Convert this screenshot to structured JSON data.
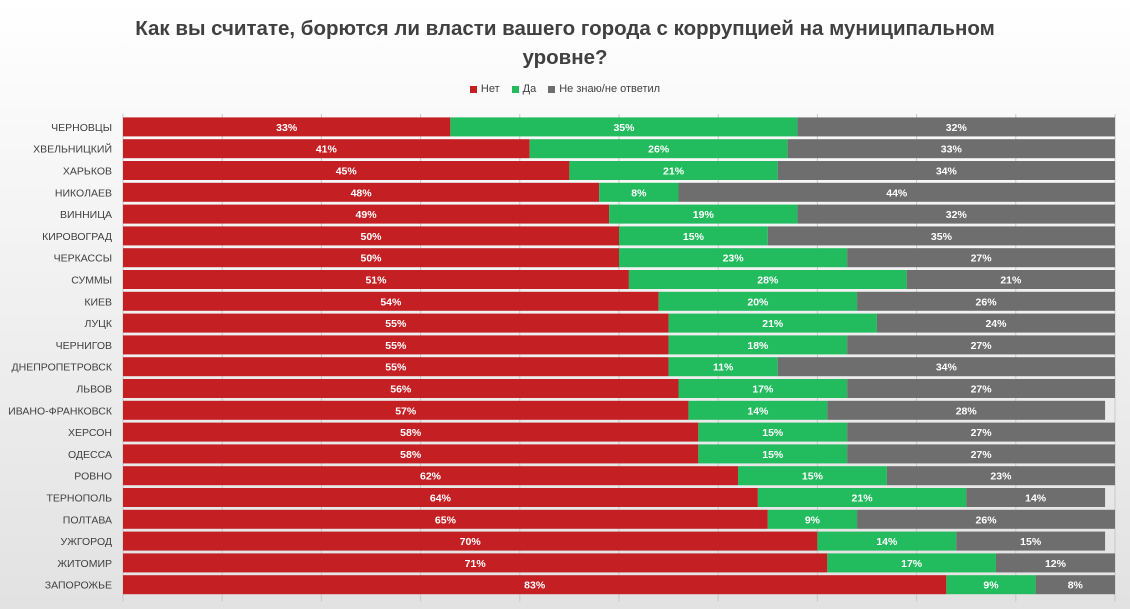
{
  "chart_data": {
    "type": "bar",
    "orientation": "horizontal",
    "stacked": true,
    "title": "Как вы считате, борются ли власти вашего города с коррупцией на муниципальном уровне?",
    "xlabel": "",
    "ylabel": "",
    "xlim": [
      0,
      100
    ],
    "legend_position": "top",
    "categories": [
      "ЧЕРНОВЦЫ",
      "ХВЕЛЬНИЦКИЙ",
      "ХАРЬКОВ",
      "НИКОЛАЕВ",
      "ВИННИЦА",
      "КИРОВОГРАД",
      "ЧЕРКАССЫ",
      "СУММЫ",
      "КИЕВ",
      "ЛУЦК",
      "ЧЕРНИГОВ",
      "ДНЕПРОПЕТРОВСК",
      "ЛЬВОВ",
      "ИВАНО-ФРАНКОВСК",
      "ХЕРСОН",
      "ОДЕССА",
      "РОВНО",
      "ТЕРНОПОЛЬ",
      "ПОЛТАВА",
      "УЖГОРОД",
      "ЖИТОМИР",
      "ЗАПОРОЖЬЕ"
    ],
    "series": [
      {
        "name": "Нет",
        "color": "#c42024",
        "values": [
          33,
          41,
          45,
          48,
          49,
          50,
          50,
          51,
          54,
          55,
          55,
          55,
          56,
          57,
          58,
          58,
          62,
          64,
          65,
          70,
          71,
          83
        ]
      },
      {
        "name": "Да",
        "color": "#22bb5e",
        "values": [
          35,
          26,
          21,
          8,
          19,
          15,
          23,
          28,
          20,
          21,
          18,
          11,
          17,
          14,
          15,
          15,
          15,
          21,
          9,
          14,
          17,
          9
        ]
      },
      {
        "name": "Не знаю/не ответил",
        "color": "#6e6e6e",
        "values": [
          32,
          33,
          34,
          44,
          32,
          35,
          27,
          21,
          26,
          24,
          27,
          34,
          27,
          28,
          27,
          27,
          23,
          14,
          26,
          15,
          12,
          8
        ]
      }
    ]
  }
}
